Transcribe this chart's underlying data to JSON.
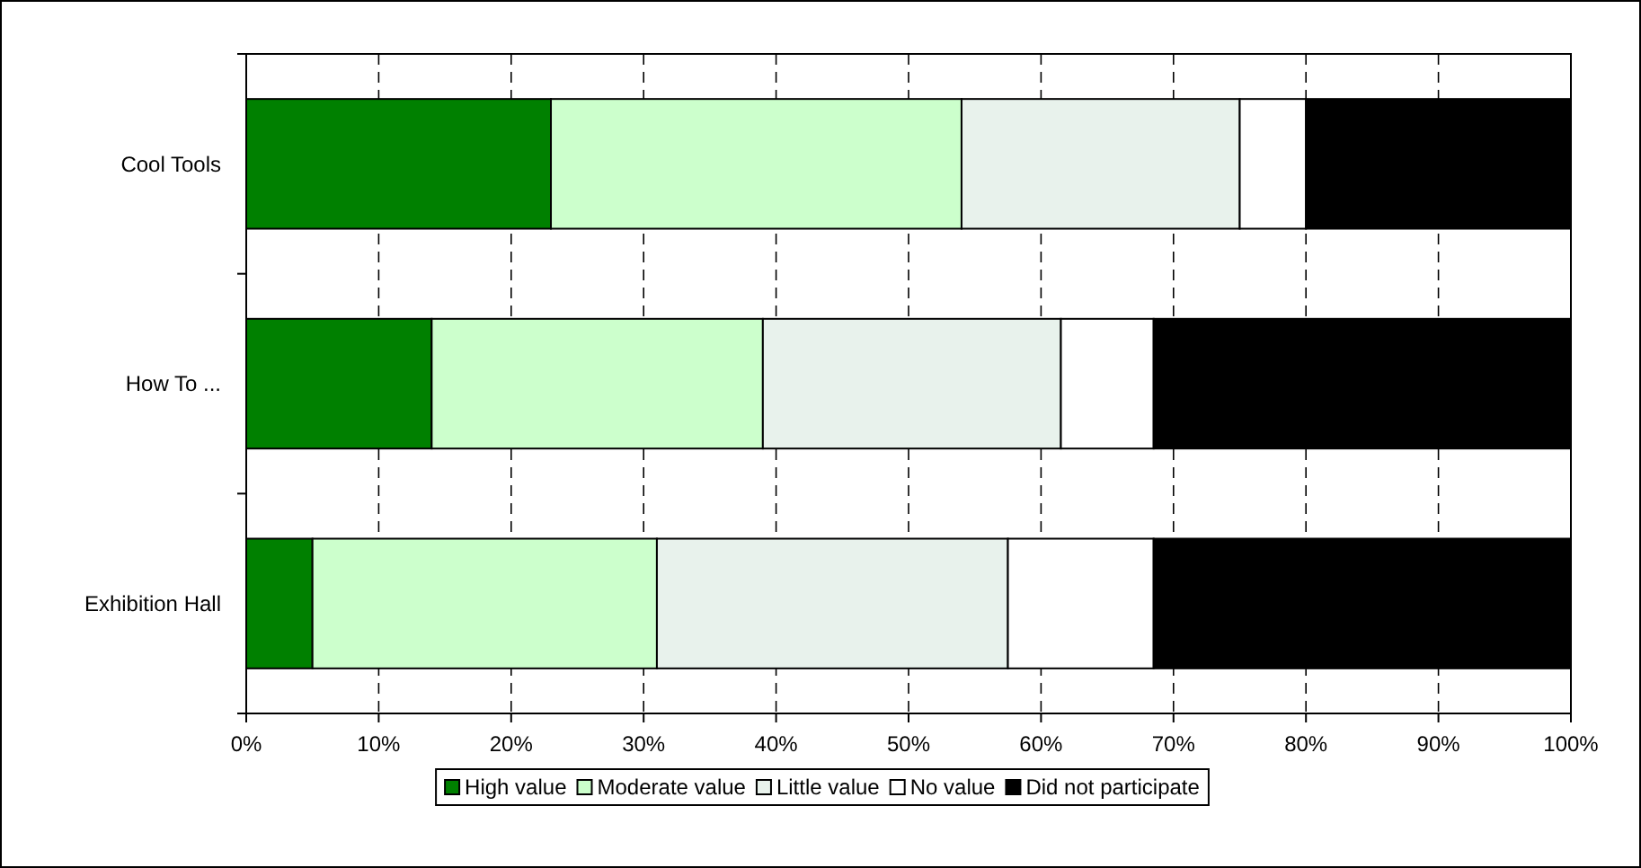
{
  "chart_data": {
    "type": "bar",
    "orientation": "horizontal",
    "stacked": true,
    "categories": [
      "Cool Tools",
      "How To ...",
      "Exhibition Hall"
    ],
    "series": [
      {
        "name": "High value",
        "color": "#008000",
        "values": [
          23,
          14,
          5
        ]
      },
      {
        "name": "Moderate value",
        "color": "#ccffcc",
        "values": [
          31,
          25,
          26
        ]
      },
      {
        "name": "Little value",
        "color": "#e8f2ec",
        "values": [
          21,
          22.5,
          26.5
        ]
      },
      {
        "name": "No value",
        "color": "#ffffff",
        "values": [
          5,
          7,
          11
        ]
      },
      {
        "name": "Did not participate",
        "color": "#000000",
        "values": [
          20,
          31.5,
          31.5
        ]
      }
    ],
    "xlim": [
      0,
      100
    ],
    "xticks": [
      {
        "value": 0,
        "label": "0%"
      },
      {
        "value": 10,
        "label": "10%"
      },
      {
        "value": 20,
        "label": "20%"
      },
      {
        "value": 30,
        "label": "30%"
      },
      {
        "value": 40,
        "label": "40%"
      },
      {
        "value": 50,
        "label": "50%"
      },
      {
        "value": 60,
        "label": "60%"
      },
      {
        "value": 70,
        "label": "70%"
      },
      {
        "value": 80,
        "label": "80%"
      },
      {
        "value": 90,
        "label": "90%"
      },
      {
        "value": 100,
        "label": "100%"
      }
    ],
    "grid": "x",
    "legend": "bottom"
  }
}
